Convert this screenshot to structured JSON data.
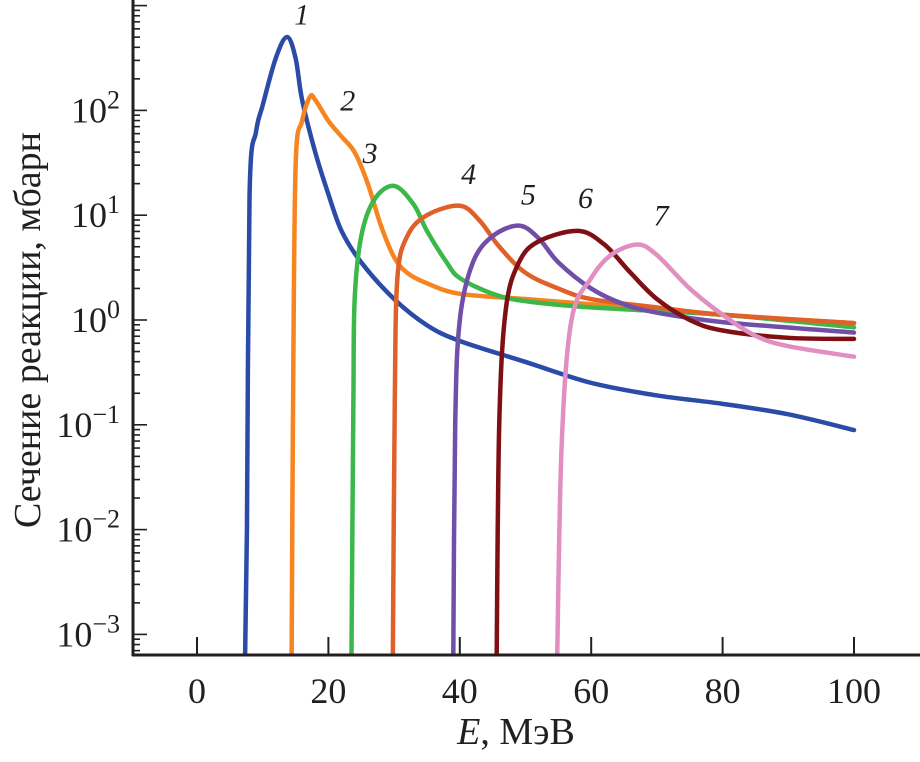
{
  "chart_data": {
    "type": "line",
    "title": "",
    "xlabel": "E, МэВ",
    "xlabel_italic": "E",
    "xlabel_rest": ", МэВ",
    "ylabel": "Сечение реакции, мбарн",
    "xlim": [
      -10,
      110
    ],
    "ylim_log10": [
      -3.18,
      3.07
    ],
    "yscale": "log",
    "grid": false,
    "x_ticks": [
      0,
      20,
      40,
      60,
      80,
      100
    ],
    "x_tick_labels": [
      "0",
      "20",
      "40",
      "60",
      "80",
      "100"
    ],
    "y_ticks_log10": [
      2,
      1,
      0,
      -1,
      -2,
      -3
    ],
    "y_tick_labels": [
      {
        "base": "10",
        "exp": "2"
      },
      {
        "base": "10",
        "exp": "1"
      },
      {
        "base": "10",
        "exp": "0"
      },
      {
        "base": "10",
        "exp": "−1"
      },
      {
        "base": "10",
        "exp": "−2"
      },
      {
        "base": "10",
        "exp": "−3"
      }
    ],
    "series": [
      {
        "name": "1",
        "color": "#2b4ba8",
        "label_at": [
          14.8,
          2.82
        ],
        "x": [
          7.3,
          7.6,
          8,
          9,
          10,
          12,
          13.7,
          15,
          16,
          18,
          20,
          22,
          25,
          30,
          35,
          40,
          50,
          60,
          70,
          80,
          90,
          100
        ],
        "y_log10": [
          -3.3,
          -2,
          1.2,
          1.8,
          2.05,
          2.5,
          2.7,
          2.5,
          2.1,
          1.6,
          1.2,
          0.85,
          0.55,
          0.2,
          -0.05,
          -0.2,
          -0.4,
          -0.6,
          -0.72,
          -0.8,
          -0.9,
          -1.05
        ]
      },
      {
        "name": "2",
        "color": "#f7851f",
        "label_at": [
          21.8,
          2.0
        ],
        "x": [
          14.4,
          14.6,
          15,
          16,
          17.2,
          18,
          20,
          22,
          24,
          26,
          28,
          30,
          32,
          35,
          40,
          50,
          60,
          80,
          100
        ],
        "y_log10": [
          -3.3,
          -1,
          1.45,
          1.9,
          2.13,
          2.1,
          1.9,
          1.75,
          1.6,
          1.3,
          0.9,
          0.6,
          0.45,
          0.35,
          0.25,
          0.2,
          0.15,
          0.05,
          -0.03
        ]
      },
      {
        "name": "3",
        "color": "#3cb84a",
        "label_at": [
          25.2,
          1.5
        ],
        "x": [
          23.5,
          23.8,
          24,
          25,
          27,
          30,
          33,
          35,
          38,
          40,
          45,
          50,
          60,
          80,
          100
        ],
        "y_log10": [
          -3.3,
          -0.8,
          0.2,
          0.8,
          1.15,
          1.28,
          1.1,
          0.85,
          0.55,
          0.4,
          0.25,
          0.18,
          0.12,
          0.05,
          -0.07
        ]
      },
      {
        "name": "4",
        "color": "#e0602a",
        "label_at": [
          40.2,
          1.3
        ],
        "x": [
          29.8,
          30.1,
          30.5,
          32,
          35,
          40,
          43,
          46,
          50,
          55,
          60,
          70,
          80,
          100
        ],
        "y_log10": [
          -3.3,
          -0.8,
          0.4,
          0.8,
          1.0,
          1.09,
          0.95,
          0.7,
          0.45,
          0.3,
          0.2,
          0.12,
          0.05,
          -0.03
        ]
      },
      {
        "name": "5",
        "color": "#6f4fa8",
        "label_at": [
          49.3,
          1.1
        ],
        "x": [
          39,
          39.3,
          40,
          42,
          45,
          49,
          52,
          55,
          60,
          65,
          70,
          80,
          100
        ],
        "y_log10": [
          -3.3,
          -1,
          0,
          0.55,
          0.8,
          0.9,
          0.78,
          0.55,
          0.3,
          0.15,
          0.07,
          -0.02,
          -0.12
        ]
      },
      {
        "name": "6",
        "color": "#7f0f12",
        "label_at": [
          58,
          1.07
        ],
        "x": [
          45.6,
          46,
          47,
          49,
          52,
          58,
          62,
          66,
          70,
          75,
          80,
          90,
          100
        ],
        "y_log10": [
          -3.3,
          -1,
          0.1,
          0.55,
          0.75,
          0.85,
          0.72,
          0.45,
          0.2,
          0.0,
          -0.1,
          -0.17,
          -0.18
        ]
      },
      {
        "name": "7",
        "color": "#e08fc0",
        "label_at": [
          69.5,
          0.9
        ],
        "x": [
          54.8,
          55.5,
          57,
          60,
          63,
          67,
          70,
          75,
          80,
          85,
          90,
          100
        ],
        "y_log10": [
          -3.3,
          -1.2,
          0,
          0.4,
          0.62,
          0.72,
          0.62,
          0.3,
          0.05,
          -0.15,
          -0.25,
          -0.35
        ]
      }
    ]
  }
}
